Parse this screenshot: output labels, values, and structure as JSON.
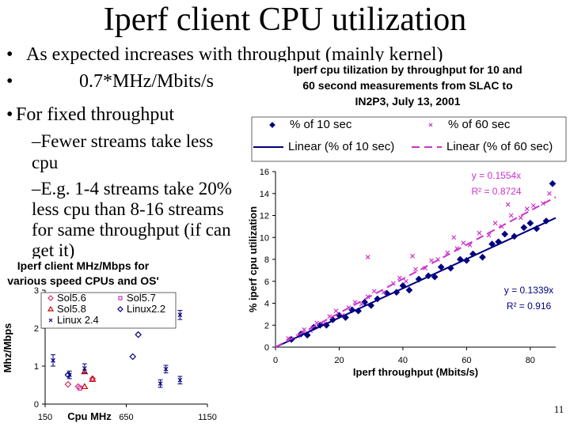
{
  "title": "Iperf client CPU utilization",
  "bullets": [
    "As expected increases with throughput (mainly kernel)",
    "0.7*MHz/Mbits/s",
    "For fixed throughput"
  ],
  "sub_bullets": [
    "–Fewer streams take less",
    "cpu",
    "–E.g. 1-4 streams take 20%",
    "less cpu than 8-16 streams",
    "for same throughput (if can",
    "get it)"
  ],
  "page_number": "11",
  "chart_data": [
    {
      "type": "scatter",
      "title": [
        "Iperf cpu tilization by throughput for 10 and",
        "60 second measurements from SLAC to",
        "IN2P3, July 13, 2001"
      ],
      "x_label": "Iperf throughput (Mbits/s)",
      "y_label": "% iperf cpu utilization",
      "xlim": [
        0,
        88
      ],
      "xticks": [
        0,
        20,
        40,
        60,
        80
      ],
      "ylim": [
        0,
        16
      ],
      "yticks": [
        0,
        2,
        4,
        6,
        8,
        10,
        12,
        14,
        16
      ],
      "annotations": [
        "y = 0.1554x",
        "R² = 0.8724",
        "y = 0.1339x",
        "R² = 0.916"
      ],
      "series": [
        {
          "name": "% of 10 sec",
          "color": "#000080",
          "marker": "diamond",
          "filled": true,
          "x": [
            5,
            8,
            10,
            12,
            14,
            16,
            18,
            20,
            22,
            24,
            26,
            28,
            30,
            32,
            35,
            38,
            40,
            42,
            45,
            48,
            50,
            52,
            55,
            58,
            60,
            62,
            65,
            68,
            70,
            72,
            75,
            78,
            80,
            82,
            85,
            87
          ],
          "values": [
            0.7,
            1.2,
            1.1,
            1.8,
            2.0,
            2.0,
            2.5,
            2.9,
            2.7,
            3.4,
            3.3,
            4.1,
            3.8,
            4.4,
            4.9,
            5.0,
            5.6,
            5.2,
            6.2,
            6.5,
            6.4,
            7.3,
            7.2,
            8.0,
            7.9,
            8.5,
            8.2,
            9.4,
            9.6,
            10.3,
            10.1,
            10.9,
            11.3,
            10.8,
            11.5,
            14.9
          ]
        },
        {
          "name": "% of 60 sec",
          "color": "#cc33cc",
          "marker": "x",
          "filled": false,
          "x": [
            4,
            7,
            9,
            11,
            13,
            15,
            17,
            19,
            21,
            23,
            25,
            27,
            29,
            31,
            34,
            37,
            39,
            41,
            44,
            47,
            49,
            51,
            54,
            57,
            59,
            61,
            64,
            67,
            69,
            71,
            74,
            77,
            79,
            81,
            84,
            86,
            29,
            43,
            56,
            73
          ],
          "values": [
            0.8,
            1.0,
            1.6,
            1.5,
            2.2,
            2.1,
            2.8,
            3.3,
            2.9,
            3.6,
            4.1,
            3.9,
            4.6,
            5.1,
            5.0,
            5.8,
            6.3,
            6.0,
            7.1,
            7.2,
            7.9,
            8.0,
            8.6,
            9.0,
            9.5,
            9.3,
            10.4,
            10.2,
            11.3,
            11.0,
            12.0,
            11.8,
            12.6,
            12.9,
            13.1,
            14.0,
            8.2,
            8.3,
            10.0,
            13.0
          ]
        },
        {
          "name": "Linear (% of 10 sec)",
          "color": "#000080",
          "style": "line",
          "dash": false,
          "x": [
            0,
            88
          ],
          "values": [
            0,
            11.78
          ]
        },
        {
          "name": "Linear (% of 60 sec)",
          "color": "#cc33cc",
          "style": "line",
          "dash": true,
          "x": [
            0,
            88
          ],
          "values": [
            0,
            13.68
          ]
        }
      ]
    },
    {
      "type": "scatter",
      "title": [
        "Iperf client MHz/Mbps for",
        "various speed CPUs and OS'"
      ],
      "x_label": "Cpu MHz",
      "y_label": "Mhz/Mbps",
      "xlim": [
        150,
        1150
      ],
      "xticks": [
        150,
        650,
        1150
      ],
      "ylim": [
        0,
        3
      ],
      "yticks": [
        0,
        1,
        2,
        3
      ],
      "series": [
        {
          "name": "Sol5.6",
          "color": "#cc3366",
          "marker": "diamond",
          "filled": false,
          "x": [
            291,
            354,
            442
          ],
          "values": [
            0.52,
            0.46,
            0.67
          ]
        },
        {
          "name": "Sol5.7",
          "color": "#cc33cc",
          "marker": "square",
          "filled": false,
          "x": [
            364
          ],
          "values": [
            0.42
          ]
        },
        {
          "name": "Sol5.8",
          "color": "#cc0000",
          "marker": "triangle",
          "filled": false,
          "x": [
            393,
            393,
            442
          ],
          "values": [
            0.85,
            0.46,
            0.65
          ]
        },
        {
          "name": "Linux2.2",
          "color": "#000080",
          "marker": "diamond",
          "filled": false,
          "x": [
            291,
            724,
            690
          ],
          "values": [
            0.77,
            1.83,
            1.25
          ]
        },
        {
          "name": "Linux 2.4",
          "color": "#000080",
          "marker": "x",
          "filled": false,
          "x": [
            199,
            300,
            393,
            860,
            894,
            981,
            981
          ],
          "values": [
            1.15,
            0.77,
            0.94,
            0.54,
            0.92,
            0.63,
            2.35
          ],
          "errors": [
            0.15,
            0.1,
            0.12,
            0.1,
            0.1,
            0.1,
            0.12
          ]
        }
      ]
    }
  ]
}
